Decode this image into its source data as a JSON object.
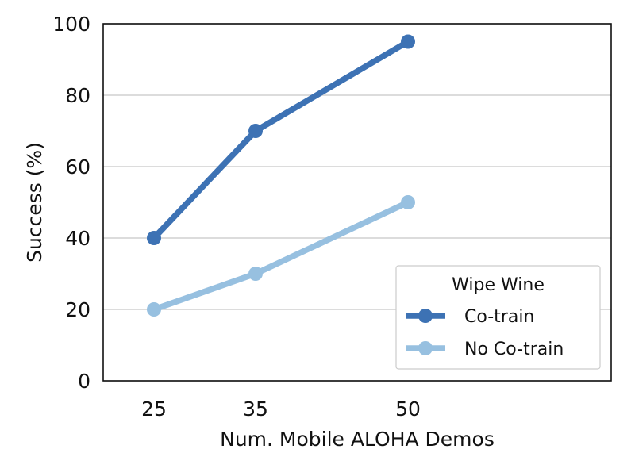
{
  "chart_data": {
    "type": "line",
    "title": "",
    "xlabel": "Num. Mobile ALOHA Demos",
    "ylabel": "Success (%)",
    "x": [
      25,
      35,
      50
    ],
    "xlim": [
      20,
      70
    ],
    "ylim": [
      0,
      100
    ],
    "yticks": [
      0,
      20,
      40,
      60,
      80,
      100
    ],
    "grid": "horizontal",
    "legend": {
      "title": "Wipe Wine",
      "placement": "lower-right"
    },
    "series": [
      {
        "name": "Co-train",
        "values": [
          40,
          70,
          95
        ],
        "color": "#3d72b4"
      },
      {
        "name": "No Co-train",
        "values": [
          20,
          30,
          50
        ],
        "color": "#97c0e0"
      }
    ]
  }
}
